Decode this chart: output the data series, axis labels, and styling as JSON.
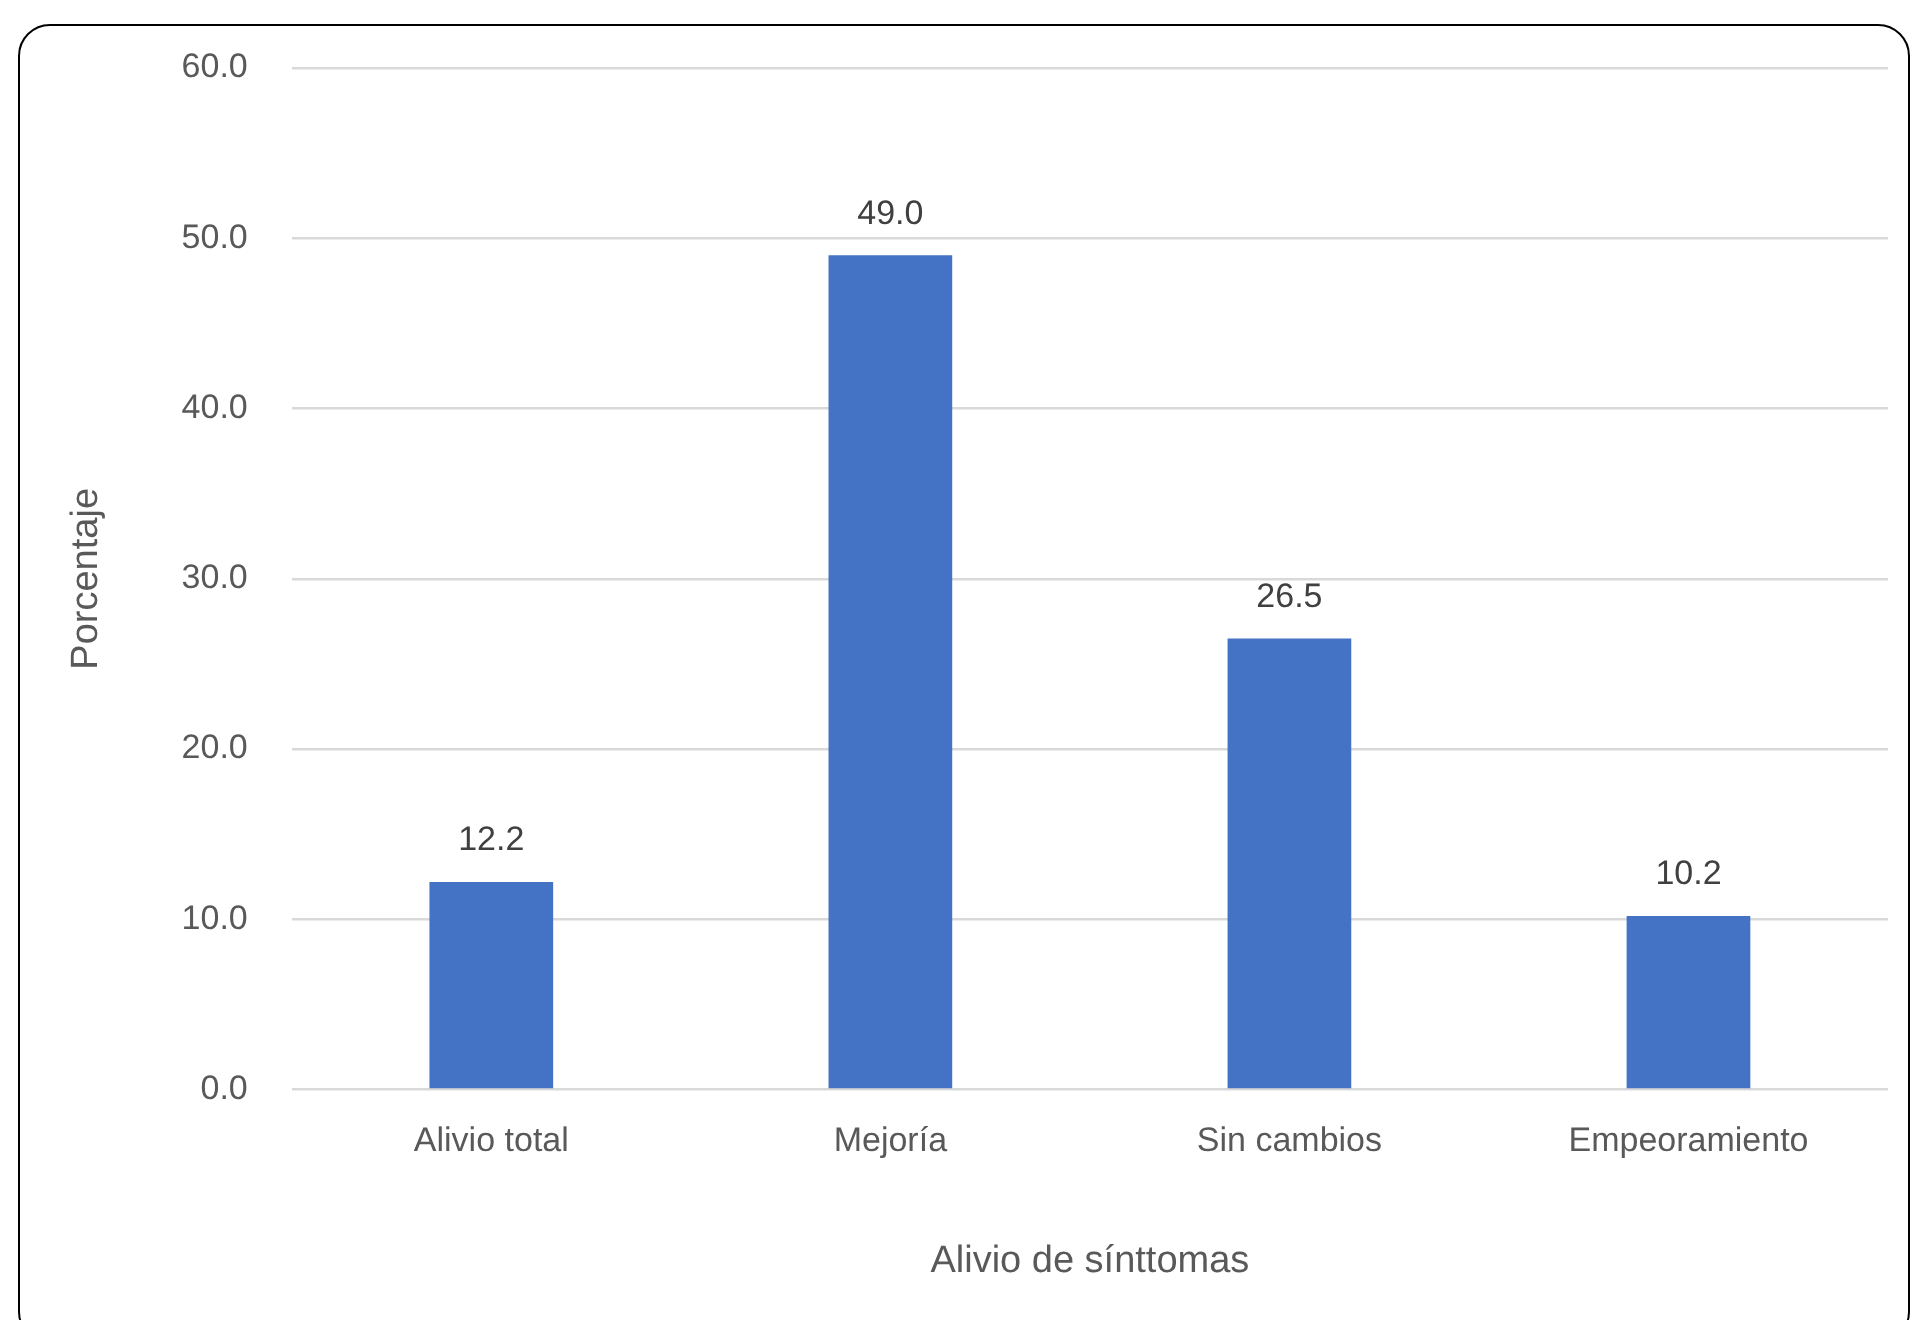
{
  "chart_data": {
    "type": "bar",
    "xlabel": "Alivio de sínttomas",
    "ylabel": "Porcentaje",
    "categories": [
      "Alivio total",
      "Mejoría",
      "Sin cambios",
      "Empeoramiento"
    ],
    "values": [
      12.2,
      49.0,
      26.5,
      10.2
    ],
    "value_labels": [
      "12.2",
      "49.0",
      "26.5",
      "10.2"
    ],
    "color": "#4472c4",
    "ylim": [
      0,
      60
    ],
    "yticks": [
      {
        "value": 0,
        "label": "0.0"
      },
      {
        "value": 10,
        "label": "10.0"
      },
      {
        "value": 20,
        "label": "20.0"
      },
      {
        "value": 30,
        "label": "30.0"
      },
      {
        "value": 40,
        "label": "40.0"
      },
      {
        "value": 50,
        "label": "50.0"
      },
      {
        "value": 60,
        "label": "60.0"
      }
    ],
    "grid": "y",
    "legend": false
  }
}
